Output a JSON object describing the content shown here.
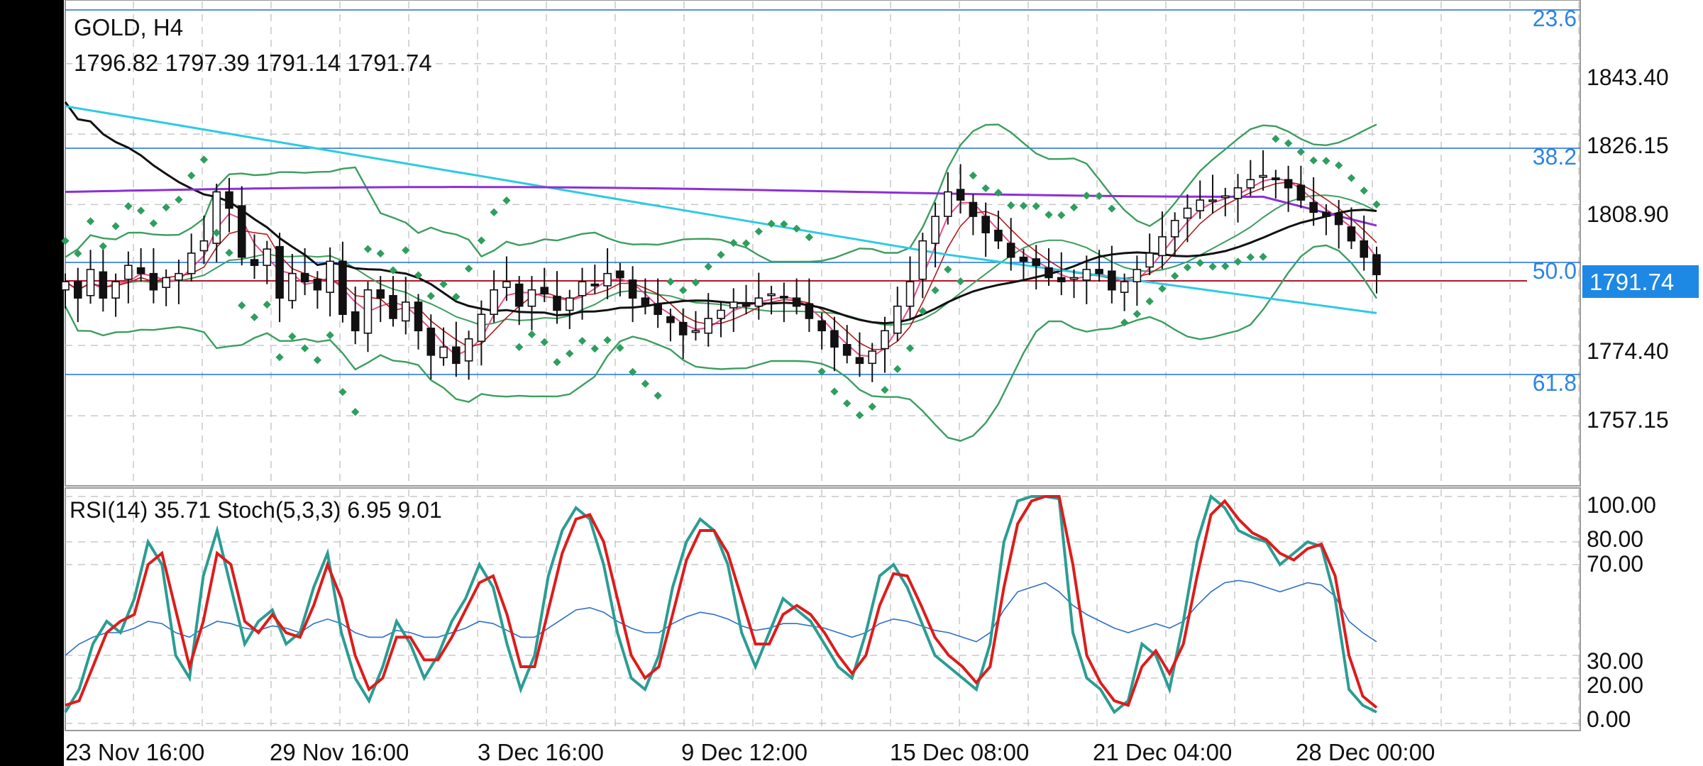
{
  "main_panel": {
    "symbol_timeframe": "GOLD, H4",
    "ohlc": "1796.82 1797.39 1791.14 1791.74",
    "price_labels": [
      "1843.40",
      "1826.15",
      "1808.90",
      "1774.40",
      "1757.15"
    ],
    "current_price": "1791.74",
    "fib_labels": [
      "23.6",
      "38.2",
      "50.0",
      "61.8"
    ]
  },
  "sub_panel": {
    "indicator_label": "RSI(14) 35.71 Stoch(5,3,3) 6.95 9.01",
    "level_labels": [
      "100.00",
      "80.00",
      "70.00",
      "30.00",
      "20.00",
      "0.00"
    ]
  },
  "time_labels": [
    "23 Nov 16:00",
    "29 Nov 16:00",
    "3 Dec 16:00",
    "9 Dec 12:00",
    "15 Dec 08:00",
    "21 Dec 04:00",
    "28 Dec 00:00"
  ],
  "colors": {
    "grid": "#c8c8c8",
    "fib_line": "#1e6fd9",
    "fib_text": "#2f86e0",
    "bid_line": "#b0172a",
    "price_badge": "#1e88e5",
    "bollinger": "#3c9e5f",
    "parabolic_sar": "#2e9e5e",
    "ma_black": "#111111",
    "ma_cyan": "#2ccbe0",
    "ma_purple": "#8b2fd6",
    "ma_pink": "#e4508f",
    "ma_red": "#b21d1d",
    "stoch_main": "#2a9d94",
    "stoch_signal": "#dd1c1c",
    "rsi": "#2e6fc6"
  },
  "chart_data": {
    "type": "line",
    "symbol": "GOLD",
    "timeframe": "H4",
    "price_axis": {
      "ticks": [
        1843.4,
        1826.15,
        1808.9,
        1774.4,
        1757.15
      ],
      "range": [
        1740.0,
        1859.0
      ]
    },
    "last_price": 1791.74,
    "fibonacci_levels": {
      "23.6": 1860.3,
      "38.2": 1820.3,
      "50.0": 1795.8,
      "61.8": 1769.9
    },
    "close_series": [
      1790,
      1786,
      1793,
      1786,
      1790,
      1794,
      1792,
      1788,
      1791,
      1792,
      1797,
      1800,
      1812,
      1808,
      1796,
      1794,
      1798,
      1786,
      1792,
      1790,
      1788,
      1795,
      1782,
      1778,
      1788,
      1786,
      1781,
      1785,
      1778,
      1772,
      1774,
      1770,
      1776,
      1782,
      1788,
      1790,
      1784,
      1788,
      1787,
      1783,
      1786,
      1790,
      1789,
      1792,
      1791,
      1786,
      1784,
      1782,
      1780,
      1777,
      1778,
      1781,
      1783,
      1785,
      1784,
      1786,
      1787,
      1786,
      1784,
      1781,
      1778,
      1774,
      1772,
      1770,
      1773,
      1778,
      1784,
      1790,
      1800,
      1806,
      1812,
      1810,
      1806,
      1802,
      1800,
      1796,
      1795,
      1794,
      1791,
      1790,
      1791,
      1793,
      1792,
      1788,
      1790,
      1793,
      1797,
      1801,
      1805,
      1808,
      1810,
      1810,
      1811,
      1813,
      1815,
      1816,
      1815,
      1813,
      1810,
      1807,
      1806,
      1804,
      1800,
      1796,
      1791.74
    ],
    "sub_window": {
      "indicators": [
        "RSI(14)",
        "Stoch(5,3,3)"
      ],
      "rsi_last": 35.71,
      "stoch_main_last": 6.95,
      "stoch_signal_last": 9.01,
      "levels": [
        100,
        80,
        70,
        30,
        20,
        0
      ],
      "stoch_main": [
        5,
        15,
        35,
        45,
        40,
        55,
        80,
        70,
        30,
        20,
        65,
        85,
        60,
        35,
        45,
        50,
        35,
        40,
        60,
        75,
        40,
        20,
        10,
        25,
        45,
        35,
        20,
        30,
        45,
        55,
        70,
        60,
        35,
        15,
        30,
        65,
        85,
        95,
        90,
        70,
        40,
        20,
        15,
        30,
        60,
        80,
        90,
        85,
        70,
        40,
        25,
        40,
        55,
        50,
        45,
        35,
        25,
        20,
        40,
        65,
        70,
        60,
        45,
        30,
        25,
        20,
        15,
        35,
        80,
        98,
        100,
        100,
        99,
        40,
        20,
        15,
        5,
        10,
        35,
        30,
        15,
        45,
        80,
        100,
        95,
        85,
        82,
        80,
        70,
        75,
        80,
        78,
        55,
        15,
        8,
        5
      ],
      "stoch_signal": [
        8,
        10,
        25,
        40,
        45,
        48,
        70,
        75,
        50,
        25,
        45,
        75,
        70,
        45,
        40,
        48,
        40,
        38,
        52,
        70,
        55,
        30,
        15,
        20,
        38,
        38,
        28,
        28,
        38,
        50,
        62,
        65,
        48,
        25,
        25,
        50,
        75,
        90,
        92,
        80,
        55,
        30,
        20,
        25,
        48,
        72,
        85,
        85,
        75,
        55,
        35,
        35,
        48,
        52,
        48,
        40,
        30,
        22,
        30,
        52,
        66,
        65,
        52,
        38,
        30,
        25,
        18,
        25,
        60,
        88,
        98,
        100,
        100,
        70,
        30,
        18,
        10,
        8,
        25,
        32,
        22,
        35,
        65,
        92,
        98,
        90,
        84,
        81,
        75,
        72,
        77,
        79,
        65,
        30,
        12,
        7
      ],
      "rsi": [
        30,
        35,
        38,
        40,
        40,
        42,
        45,
        44,
        40,
        38,
        42,
        45,
        44,
        42,
        41,
        43,
        42,
        40,
        44,
        46,
        44,
        40,
        38,
        38,
        41,
        40,
        38,
        38,
        40,
        42,
        45,
        44,
        41,
        38,
        38,
        42,
        46,
        50,
        51,
        49,
        45,
        42,
        40,
        40,
        44,
        47,
        49,
        48,
        46,
        43,
        41,
        42,
        44,
        44,
        43,
        42,
        40,
        38,
        40,
        44,
        46,
        45,
        43,
        41,
        40,
        38,
        36,
        40,
        50,
        58,
        60,
        62,
        58,
        52,
        48,
        45,
        42,
        40,
        42,
        44,
        42,
        45,
        52,
        58,
        62,
        63,
        62,
        60,
        58,
        60,
        62,
        61,
        56,
        45,
        40,
        36
      ]
    }
  }
}
